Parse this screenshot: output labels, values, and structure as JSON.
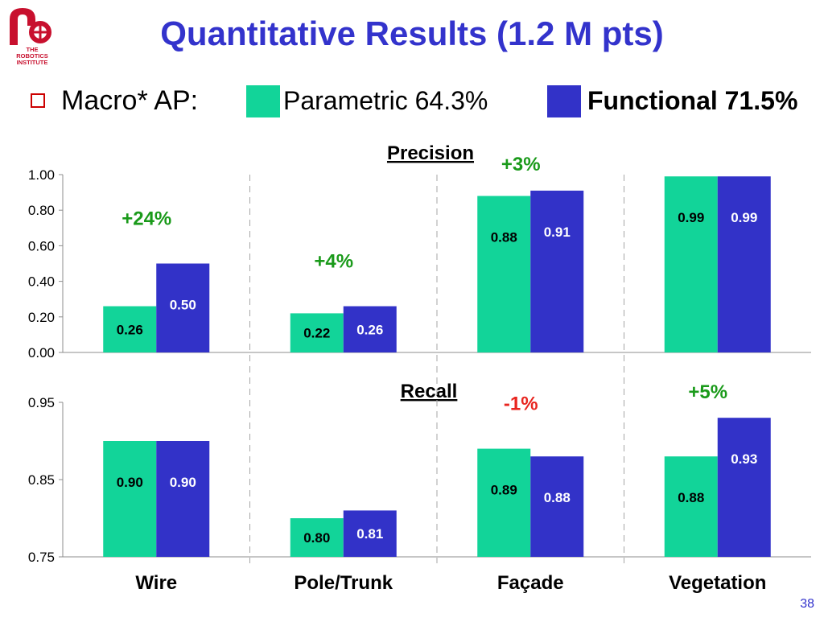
{
  "title": "Quantitative Results (1.2 M pts)",
  "logo": {
    "lines": [
      "THE",
      "ROBOTICS",
      "INSTITUTE"
    ]
  },
  "legend": {
    "prefix": "Macro* AP:",
    "parametric": "Parametric 64.3%",
    "functional": "Functional 71.5%"
  },
  "colors": {
    "parametric": "#12d499",
    "functional": "#3232c8",
    "gain": "#1a9a1a",
    "loss": "#e8251f",
    "accent": "#3333cc"
  },
  "page_number": "38",
  "chart_data": [
    {
      "type": "bar",
      "title": "Precision",
      "categories": [
        "Wire",
        "Pole/Trunk",
        "Façade",
        "Vegetation"
      ],
      "series": [
        {
          "name": "Parametric",
          "values": [
            0.26,
            0.22,
            0.88,
            0.99
          ]
        },
        {
          "name": "Functional",
          "values": [
            0.5,
            0.26,
            0.91,
            0.99
          ]
        }
      ],
      "labels": [
        [
          "0.26",
          "0.22",
          "0.88",
          "0.99"
        ],
        [
          "0.50",
          "0.26",
          "0.91",
          "0.99"
        ]
      ],
      "annotations": [
        "+24%",
        "+4%",
        "+3%",
        ""
      ],
      "ylim": [
        0,
        1
      ],
      "yticks": [
        "0.00",
        "0.20",
        "0.40",
        "0.60",
        "0.80",
        "1.00"
      ]
    },
    {
      "type": "bar",
      "title": "Recall",
      "categories": [
        "Wire",
        "Pole/Trunk",
        "Façade",
        "Vegetation"
      ],
      "series": [
        {
          "name": "Parametric",
          "values": [
            0.9,
            0.8,
            0.89,
            0.88
          ]
        },
        {
          "name": "Functional",
          "values": [
            0.9,
            0.81,
            0.88,
            0.93
          ]
        }
      ],
      "labels": [
        [
          "0.90",
          "0.80",
          "0.89",
          "0.88"
        ],
        [
          "0.90",
          "0.81",
          "0.88",
          "0.93"
        ]
      ],
      "annotations": [
        "",
        "",
        "-1%",
        "+5%"
      ],
      "ylim": [
        0.75,
        0.95
      ],
      "yticks": [
        "0.75",
        "0.85",
        "0.95"
      ]
    }
  ]
}
